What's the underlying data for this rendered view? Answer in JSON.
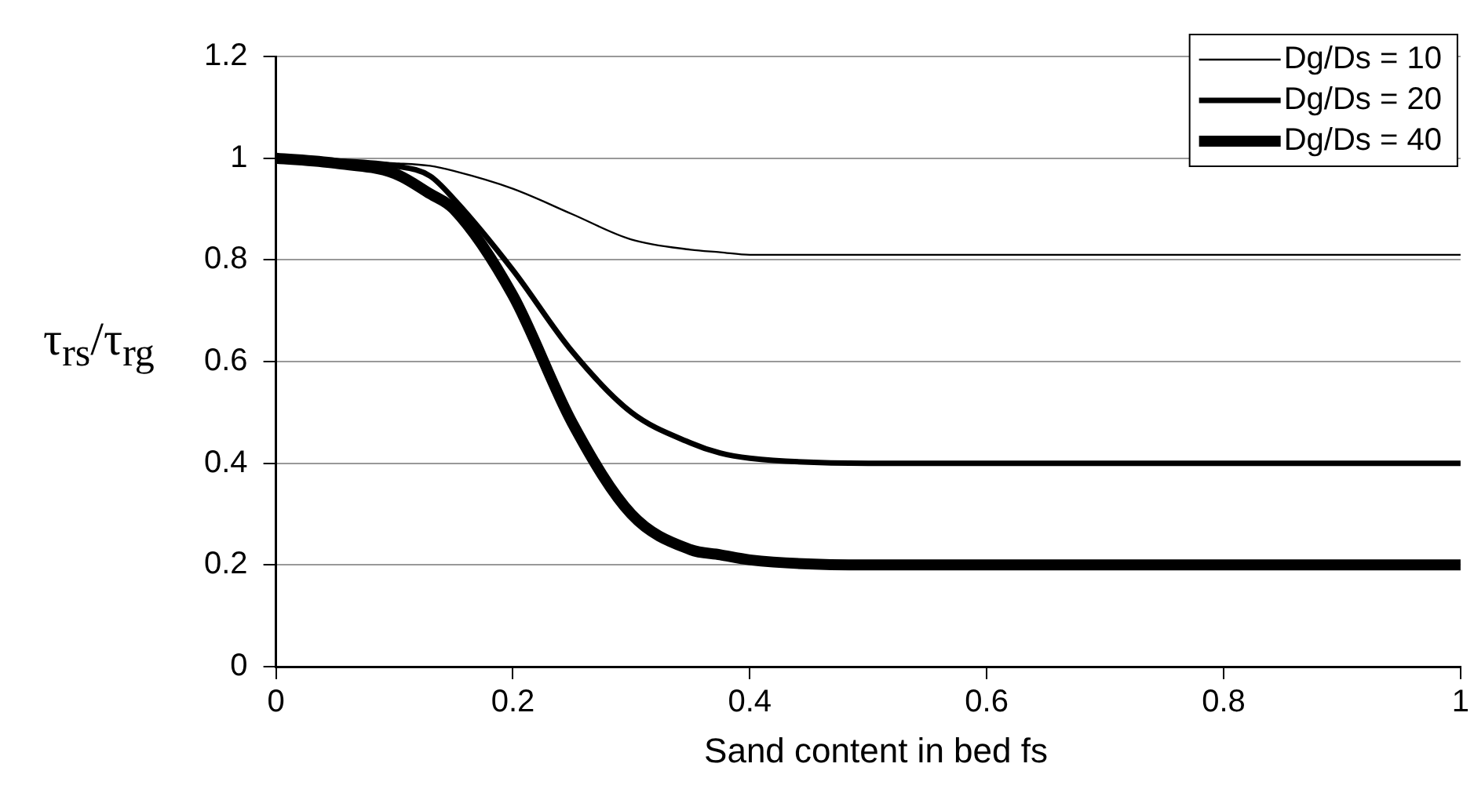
{
  "chart_data": {
    "type": "line",
    "xlabel": "Sand content in bed fs",
    "ylabel": "τ$_{rs}$/τ$_{rg}$",
    "x": [
      0,
      0.05,
      0.1,
      0.13,
      0.15,
      0.2,
      0.25,
      0.3,
      0.35,
      0.375,
      0.4,
      0.5,
      0.6,
      0.8,
      1
    ],
    "series": [
      {
        "name": "Dg/Ds = 10",
        "color": "#000000",
        "values": [
          1,
          0.995,
          0.99,
          0.985,
          0.975,
          0.94,
          0.89,
          0.84,
          0.82,
          0.815,
          0.81,
          0.81,
          0.81,
          0.81,
          0.81
        ]
      },
      {
        "name": "Dg/Ds = 20",
        "color": "#000000",
        "values": [
          1,
          0.995,
          0.985,
          0.965,
          0.92,
          0.78,
          0.62,
          0.5,
          0.44,
          0.42,
          0.41,
          0.4,
          0.4,
          0.4,
          0.4
        ]
      },
      {
        "name": "Dg/Ds = 40",
        "color": "#000000",
        "values": [
          1,
          0.99,
          0.97,
          0.93,
          0.9,
          0.73,
          0.48,
          0.3,
          0.23,
          0.22,
          0.21,
          0.2,
          0.2,
          0.2,
          0.2
        ]
      }
    ],
    "xlim": [
      0,
      1
    ],
    "xticks": [
      0,
      0.2,
      0.4,
      0.6,
      0.8,
      1
    ],
    "ylim": [
      0,
      1.2
    ],
    "yticks": [
      0,
      0.2,
      0.4,
      0.6,
      0.8,
      1,
      1.2
    ],
    "grid": "y",
    "legend": "top right",
    "marker": "none",
    "line_style": "solid"
  }
}
